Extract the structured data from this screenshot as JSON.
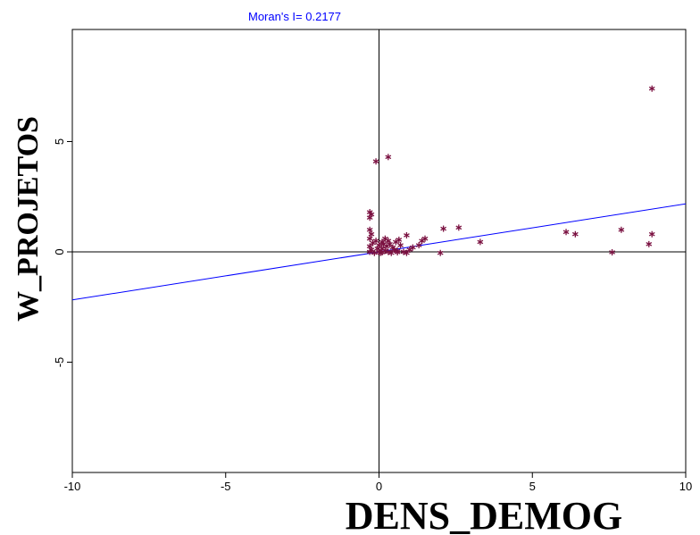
{
  "chart_data": {
    "type": "scatter",
    "title": "Moran's I= 0.2177",
    "xlabel": "DENS_DEMOG",
    "ylabel": "W_PROJETOS",
    "xlim": [
      -10,
      10
    ],
    "ylim": [
      -10,
      10
    ],
    "x_ticks": [
      -10,
      -5,
      0,
      5,
      10
    ],
    "x_tick_labels": [
      "-10",
      "-5",
      "0",
      "5",
      "10"
    ],
    "y_ticks": [
      5,
      0,
      -5
    ],
    "y_tick_labels": [
      "5",
      "0",
      "-5"
    ],
    "regression_slope": 0.2177,
    "grid": false,
    "colors": {
      "points": "#7a1040",
      "regression_line": "#0000ff",
      "title": "#0000ff",
      "axes": "#000000"
    },
    "marker": "asterisk",
    "points": [
      [
        8.9,
        7.4
      ],
      [
        0.3,
        4.3
      ],
      [
        -0.1,
        4.1
      ],
      [
        -0.3,
        1.8
      ],
      [
        -0.25,
        1.7
      ],
      [
        -0.3,
        1.55
      ],
      [
        2.6,
        1.1
      ],
      [
        2.1,
        1.05
      ],
      [
        7.9,
        1.0
      ],
      [
        8.9,
        0.8
      ],
      [
        6.1,
        0.9
      ],
      [
        6.4,
        0.8
      ],
      [
        3.3,
        0.45
      ],
      [
        8.8,
        0.35
      ],
      [
        7.6,
        -0.02
      ],
      [
        2.0,
        -0.05
      ],
      [
        1.5,
        0.6
      ],
      [
        1.4,
        0.5
      ],
      [
        0.9,
        0.75
      ],
      [
        1.1,
        0.2
      ],
      [
        1.0,
        0.1
      ],
      [
        0.9,
        -0.05
      ],
      [
        1.3,
        0.3
      ],
      [
        -0.3,
        1.0
      ],
      [
        -0.25,
        0.8
      ],
      [
        -0.3,
        0.6
      ],
      [
        -0.2,
        0.4
      ],
      [
        -0.3,
        0.25
      ],
      [
        -0.25,
        0.1
      ],
      [
        -0.3,
        0.0
      ],
      [
        -0.1,
        0.5
      ],
      [
        0.0,
        0.3
      ],
      [
        0.1,
        0.15
      ],
      [
        0.2,
        0.05
      ],
      [
        0.3,
        0.0
      ],
      [
        0.4,
        -0.05
      ],
      [
        0.5,
        0.1
      ],
      [
        0.6,
        0.05
      ],
      [
        0.7,
        0.3
      ],
      [
        0.2,
        0.6
      ],
      [
        0.1,
        0.45
      ],
      [
        0.35,
        0.35
      ],
      [
        -0.15,
        -0.05
      ],
      [
        0.05,
        -0.05
      ],
      [
        0.25,
        0.25
      ],
      [
        0.45,
        0.2
      ],
      [
        0.55,
        0.45
      ],
      [
        0.65,
        0.55
      ],
      [
        -0.05,
        0.15
      ],
      [
        0.15,
        0.35
      ],
      [
        0.3,
        0.5
      ],
      [
        0.0,
        0.0
      ],
      [
        0.1,
        -0.02
      ],
      [
        0.6,
        -0.02
      ],
      [
        0.8,
        0.0
      ]
    ]
  }
}
